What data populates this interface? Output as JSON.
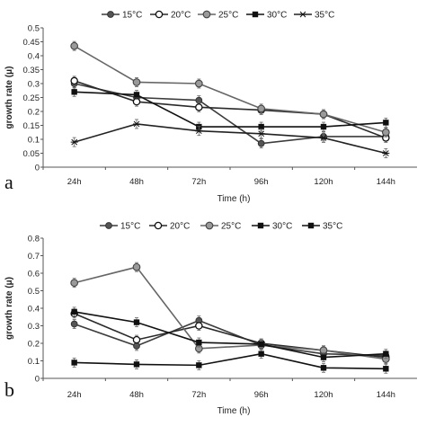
{
  "chart_data": [
    {
      "panel_label": "a",
      "type": "line",
      "categories": [
        "24h",
        "48h",
        "72h",
        "96h",
        "120h",
        "144h"
      ],
      "xlabel": "Time (h)",
      "ylabel": "growth rate (μ)",
      "ylim": [
        0,
        0.5
      ],
      "yticks": [
        "0",
        "0.05",
        "0.1",
        "0.15",
        "0.2",
        "0.25",
        "0.3",
        "0.35",
        "0.4",
        "0.45",
        "0.5"
      ],
      "grid": false,
      "legend": "top",
      "series": [
        {
          "name": "15°C",
          "marker": "circle-dark",
          "values": [
            0.3,
            0.25,
            0.24,
            0.085,
            0.11,
            0.11
          ]
        },
        {
          "name": "20°C",
          "marker": "circle-open",
          "values": [
            0.31,
            0.235,
            0.215,
            0.205,
            0.19,
            0.105
          ]
        },
        {
          "name": "25°C",
          "marker": "circle-gray",
          "values": [
            0.435,
            0.305,
            0.3,
            0.21,
            0.19,
            0.125
          ]
        },
        {
          "name": "30°C",
          "marker": "square",
          "values": [
            0.27,
            0.26,
            0.145,
            0.145,
            0.145,
            0.16
          ]
        },
        {
          "name": "35°C",
          "marker": "star",
          "values": [
            0.09,
            0.155,
            0.13,
            0.12,
            0.105,
            0.05
          ]
        }
      ]
    },
    {
      "panel_label": "b",
      "type": "line",
      "categories": [
        "24h",
        "48h",
        "72h",
        "96h",
        "120h",
        "144h"
      ],
      "xlabel": "Time (h)",
      "ylabel": "growth rate (μ)",
      "ylim": [
        0,
        0.8
      ],
      "yticks": [
        "0",
        "0.1",
        "0.2",
        "0.3",
        "0.4",
        "0.5",
        "0.6",
        "0.7",
        "0.8"
      ],
      "grid": false,
      "legend": "top",
      "series": [
        {
          "name": "15°C",
          "marker": "circle-dark",
          "values": [
            0.31,
            0.185,
            0.33,
            0.19,
            0.14,
            0.13
          ]
        },
        {
          "name": "20°C",
          "marker": "circle-open",
          "values": [
            0.37,
            0.22,
            0.3,
            0.2,
            0.16,
            0.12
          ]
        },
        {
          "name": "25°C",
          "marker": "circle-gray",
          "values": [
            0.545,
            0.635,
            0.17,
            0.19,
            0.16,
            0.11
          ]
        },
        {
          "name": "30°C",
          "marker": "square",
          "values": [
            0.38,
            0.32,
            0.205,
            0.195,
            0.12,
            0.14
          ]
        },
        {
          "name": "35°C",
          "marker": "square",
          "values": [
            0.09,
            0.08,
            0.075,
            0.14,
            0.06,
            0.055
          ]
        }
      ]
    }
  ]
}
